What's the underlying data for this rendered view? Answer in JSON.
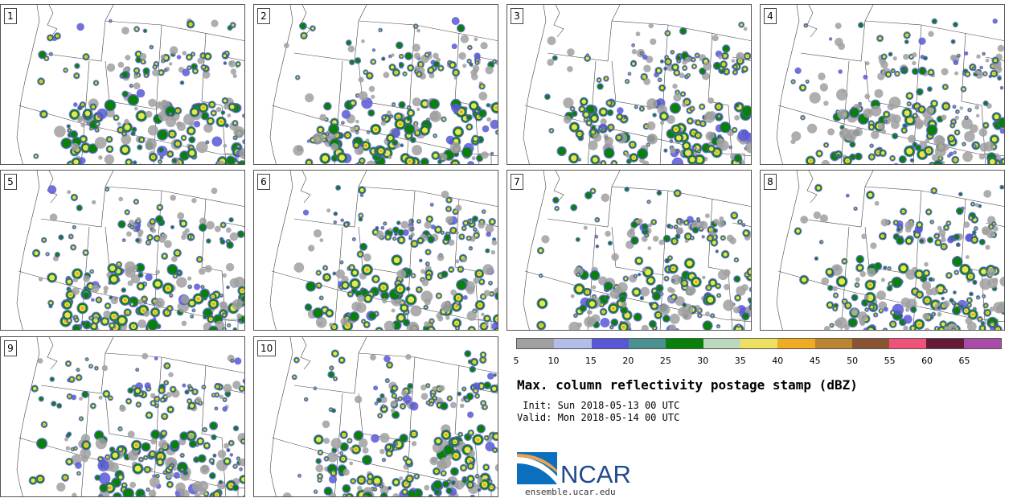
{
  "panels": [
    {
      "label": "1"
    },
    {
      "label": "2"
    },
    {
      "label": "3"
    },
    {
      "label": "4"
    },
    {
      "label": "5"
    },
    {
      "label": "6"
    },
    {
      "label": "7"
    },
    {
      "label": "8"
    },
    {
      "label": "9"
    },
    {
      "label": "10"
    }
  ],
  "colorbar": {
    "colors": [
      "#a0a0a0",
      "#b4bde8",
      "#5858d6",
      "#4b9191",
      "#098009",
      "#bcd9bc",
      "#ede060",
      "#efac22",
      "#ba8431",
      "#8a5432",
      "#ef5278",
      "#651a38",
      "#a84ca7"
    ],
    "ticks": [
      "5",
      "10",
      "15",
      "20",
      "25",
      "30",
      "35",
      "40",
      "45",
      "50",
      "55",
      "60",
      "65"
    ]
  },
  "title": "Max. column reflectivity postage stamp (dBZ)",
  "init": " Init: Sun 2018-05-13 00 UTC",
  "valid": "Valid: Mon 2018-05-14 00 UTC",
  "logo_text": "NCAR",
  "site": "ensemble.ucar.edu"
}
